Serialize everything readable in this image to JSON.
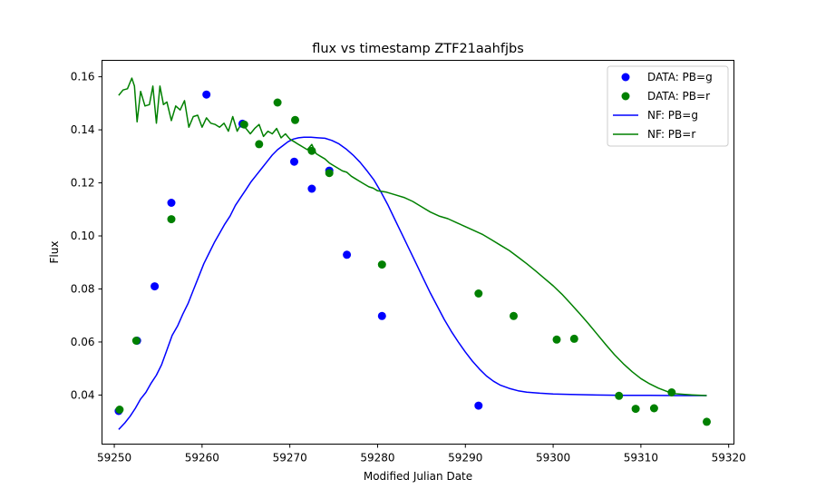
{
  "chart_data": {
    "type": "scatter",
    "title": "flux vs timestamp ZTF21aahfjbs",
    "xlabel": "Modified Julian Date",
    "ylabel": "Flux",
    "xlim": [
      59248.6,
      59320.6
    ],
    "ylim": [
      0.0215,
      0.1662
    ],
    "xticks": [
      59250,
      59260,
      59270,
      59280,
      59290,
      59300,
      59310,
      59320
    ],
    "yticks": [
      0.04,
      0.06,
      0.08,
      0.1,
      0.12,
      0.14,
      0.16
    ],
    "ytick_labels": [
      "0.04",
      "0.06",
      "0.08",
      "0.10",
      "0.12",
      "0.14",
      "0.16"
    ],
    "grid": false,
    "legend_position": "top-right",
    "series": [
      {
        "name": "DATA: PB=g",
        "kind": "scatter",
        "color": "#0000ff",
        "points": [
          [
            59250.5,
            0.034
          ],
          [
            59252.6,
            0.0605
          ],
          [
            59254.6,
            0.081
          ],
          [
            59256.5,
            0.1125
          ],
          [
            59260.5,
            0.1533
          ],
          [
            59264.6,
            0.1423
          ],
          [
            59270.5,
            0.128
          ],
          [
            59272.5,
            0.1178
          ],
          [
            59274.5,
            0.1246
          ],
          [
            59276.5,
            0.0929
          ],
          [
            59280.5,
            0.0698
          ],
          [
            59291.5,
            0.036
          ]
        ]
      },
      {
        "name": "DATA: PB=r",
        "kind": "scatter",
        "color": "#008000",
        "points": [
          [
            59250.6,
            0.0345
          ],
          [
            59252.5,
            0.0605
          ],
          [
            59256.5,
            0.1063
          ],
          [
            59264.8,
            0.142
          ],
          [
            59266.5,
            0.1346
          ],
          [
            59268.6,
            0.1503
          ],
          [
            59270.6,
            0.1437
          ],
          [
            59272.5,
            0.1321
          ],
          [
            59274.5,
            0.1237
          ],
          [
            59280.5,
            0.0892
          ],
          [
            59291.5,
            0.0783
          ],
          [
            59295.5,
            0.0698
          ],
          [
            59300.4,
            0.0609
          ],
          [
            59302.4,
            0.0612
          ],
          [
            59307.5,
            0.0397
          ],
          [
            59309.4,
            0.0348
          ],
          [
            59311.5,
            0.035
          ],
          [
            59313.5,
            0.041
          ],
          [
            59317.5,
            0.0299
          ]
        ]
      },
      {
        "name": "NF: PB=g",
        "kind": "line",
        "color": "#0000ff",
        "points": [
          [
            59250.5,
            0.027
          ],
          [
            59251.2,
            0.0295
          ],
          [
            59251.8,
            0.032
          ],
          [
            59252.4,
            0.035
          ],
          [
            59253.0,
            0.0385
          ],
          [
            59253.6,
            0.041
          ],
          [
            59254.2,
            0.0445
          ],
          [
            59254.8,
            0.0475
          ],
          [
            59255.4,
            0.0515
          ],
          [
            59256.0,
            0.057
          ],
          [
            59256.6,
            0.0625
          ],
          [
            59257.2,
            0.066
          ],
          [
            59257.8,
            0.0705
          ],
          [
            59258.4,
            0.0745
          ],
          [
            59259.0,
            0.0795
          ],
          [
            59259.6,
            0.0845
          ],
          [
            59260.2,
            0.0895
          ],
          [
            59260.8,
            0.0935
          ],
          [
            59261.4,
            0.0975
          ],
          [
            59262.0,
            0.101
          ],
          [
            59262.6,
            0.1045
          ],
          [
            59263.2,
            0.1075
          ],
          [
            59263.8,
            0.1115
          ],
          [
            59264.4,
            0.1145
          ],
          [
            59265.0,
            0.1175
          ],
          [
            59265.6,
            0.1205
          ],
          [
            59266.2,
            0.123
          ],
          [
            59266.8,
            0.1255
          ],
          [
            59267.4,
            0.128
          ],
          [
            59268.0,
            0.1305
          ],
          [
            59268.6,
            0.1325
          ],
          [
            59269.2,
            0.134
          ],
          [
            59269.8,
            0.1355
          ],
          [
            59270.4,
            0.1365
          ],
          [
            59271.0,
            0.137
          ],
          [
            59271.6,
            0.1372
          ],
          [
            59272.4,
            0.1372
          ],
          [
            59273.2,
            0.137
          ],
          [
            59274.0,
            0.1368
          ],
          [
            59274.8,
            0.136
          ],
          [
            59275.6,
            0.1347
          ],
          [
            59276.4,
            0.1328
          ],
          [
            59277.2,
            0.1305
          ],
          [
            59278.0,
            0.1278
          ],
          [
            59278.8,
            0.1245
          ],
          [
            59279.6,
            0.121
          ],
          [
            59280.4,
            0.1165
          ],
          [
            59281.2,
            0.1115
          ],
          [
            59282.0,
            0.106
          ],
          [
            59282.8,
            0.1005
          ],
          [
            59283.6,
            0.095
          ],
          [
            59284.4,
            0.0895
          ],
          [
            59285.2,
            0.084
          ],
          [
            59286.0,
            0.0785
          ],
          [
            59286.8,
            0.0735
          ],
          [
            59287.6,
            0.0685
          ],
          [
            59288.4,
            0.064
          ],
          [
            59289.2,
            0.06
          ],
          [
            59290.0,
            0.0562
          ],
          [
            59290.8,
            0.0528
          ],
          [
            59291.6,
            0.0498
          ],
          [
            59292.4,
            0.0472
          ],
          [
            59293.2,
            0.0452
          ],
          [
            59294.0,
            0.0437
          ],
          [
            59295.0,
            0.0425
          ],
          [
            59296.0,
            0.0416
          ],
          [
            59297.0,
            0.0411
          ],
          [
            59298.5,
            0.0407
          ],
          [
            59300.0,
            0.0404
          ],
          [
            59302.0,
            0.0402
          ],
          [
            59305.0,
            0.04
          ],
          [
            59308.0,
            0.0399
          ],
          [
            59311.0,
            0.0399
          ],
          [
            59314.0,
            0.0398
          ],
          [
            59317.5,
            0.0398
          ]
        ]
      },
      {
        "name": "NF: PB=r",
        "kind": "line",
        "color": "#008000",
        "points": [
          [
            59250.5,
            0.153
          ],
          [
            59251.0,
            0.155
          ],
          [
            59251.5,
            0.1555
          ],
          [
            59252.0,
            0.1595
          ],
          [
            59252.3,
            0.1565
          ],
          [
            59252.6,
            0.143
          ],
          [
            59253.0,
            0.1545
          ],
          [
            59253.5,
            0.149
          ],
          [
            59254.0,
            0.1495
          ],
          [
            59254.4,
            0.1565
          ],
          [
            59254.8,
            0.1425
          ],
          [
            59255.2,
            0.1565
          ],
          [
            59255.6,
            0.1495
          ],
          [
            59256.0,
            0.1505
          ],
          [
            59256.5,
            0.1435
          ],
          [
            59257.0,
            0.149
          ],
          [
            59257.5,
            0.1475
          ],
          [
            59258.0,
            0.151
          ],
          [
            59258.5,
            0.141
          ],
          [
            59259.0,
            0.145
          ],
          [
            59259.5,
            0.1455
          ],
          [
            59260.0,
            0.141
          ],
          [
            59260.5,
            0.1445
          ],
          [
            59261.0,
            0.1425
          ],
          [
            59261.5,
            0.142
          ],
          [
            59262.0,
            0.141
          ],
          [
            59262.5,
            0.1425
          ],
          [
            59263.0,
            0.1395
          ],
          [
            59263.5,
            0.145
          ],
          [
            59264.0,
            0.1395
          ],
          [
            59264.5,
            0.1425
          ],
          [
            59265.0,
            0.1405
          ],
          [
            59265.5,
            0.1385
          ],
          [
            59266.0,
            0.1405
          ],
          [
            59266.5,
            0.142
          ],
          [
            59267.0,
            0.1375
          ],
          [
            59267.5,
            0.1395
          ],
          [
            59268.0,
            0.1385
          ],
          [
            59268.5,
            0.1405
          ],
          [
            59269.0,
            0.137
          ],
          [
            59269.5,
            0.1385
          ],
          [
            59270.0,
            0.1365
          ],
          [
            59270.5,
            0.1355
          ],
          [
            59271.0,
            0.1345
          ],
          [
            59271.5,
            0.1335
          ],
          [
            59272.0,
            0.1325
          ],
          [
            59272.5,
            0.1345
          ],
          [
            59273.0,
            0.131
          ],
          [
            59273.5,
            0.13
          ],
          [
            59274.0,
            0.129
          ],
          [
            59274.5,
            0.1275
          ],
          [
            59275.0,
            0.1265
          ],
          [
            59275.5,
            0.1255
          ],
          [
            59276.0,
            0.1245
          ],
          [
            59276.5,
            0.124
          ],
          [
            59277.0,
            0.1225
          ],
          [
            59277.5,
            0.1215
          ],
          [
            59278.0,
            0.1205
          ],
          [
            59278.5,
            0.1195
          ],
          [
            59279.0,
            0.1185
          ],
          [
            59279.5,
            0.118
          ],
          [
            59280.0,
            0.117
          ],
          [
            59281.0,
            0.1165
          ],
          [
            59282.0,
            0.1155
          ],
          [
            59283.0,
            0.1145
          ],
          [
            59284.0,
            0.113
          ],
          [
            59285.0,
            0.111
          ],
          [
            59286.0,
            0.109
          ],
          [
            59287.0,
            0.1075
          ],
          [
            59288.0,
            0.1065
          ],
          [
            59289.0,
            0.105
          ],
          [
            59290.0,
            0.1035
          ],
          [
            59291.0,
            0.102
          ],
          [
            59292.0,
            0.1005
          ],
          [
            59293.0,
            0.0985
          ],
          [
            59294.0,
            0.0965
          ],
          [
            59295.0,
            0.0945
          ],
          [
            59296.0,
            0.092
          ],
          [
            59297.0,
            0.0895
          ],
          [
            59298.0,
            0.0868
          ],
          [
            59299.0,
            0.084
          ],
          [
            59300.0,
            0.0812
          ],
          [
            59301.0,
            0.078
          ],
          [
            59302.0,
            0.0745
          ],
          [
            59303.0,
            0.0708
          ],
          [
            59304.0,
            0.067
          ],
          [
            59305.0,
            0.063
          ],
          [
            59306.0,
            0.059
          ],
          [
            59307.0,
            0.0552
          ],
          [
            59308.0,
            0.0518
          ],
          [
            59309.0,
            0.0488
          ],
          [
            59310.0,
            0.0462
          ],
          [
            59311.0,
            0.0442
          ],
          [
            59312.0,
            0.0426
          ],
          [
            59313.0,
            0.0413
          ],
          [
            59314.0,
            0.0405
          ],
          [
            59315.0,
            0.0402
          ],
          [
            59316.0,
            0.04
          ],
          [
            59317.5,
            0.0398
          ]
        ]
      }
    ]
  }
}
